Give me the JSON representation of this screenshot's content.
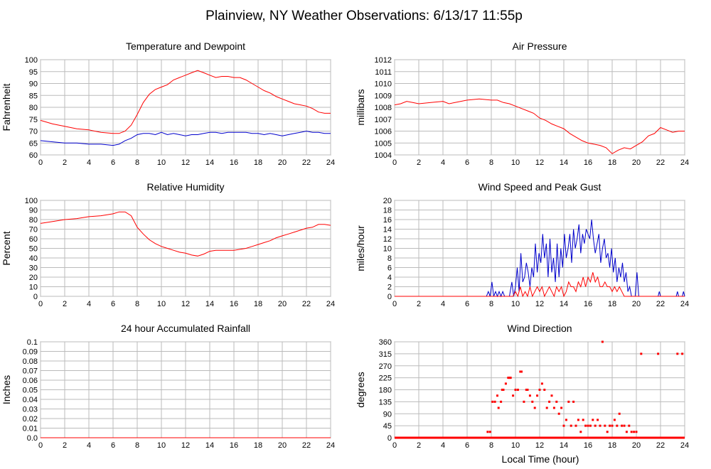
{
  "page_title": "Plainview, NY Weather Observations: 6/13/17 11:55p",
  "xlabel_common": "Local Time (hour)",
  "chart_data": [
    {
      "id": "temp",
      "type": "line",
      "title": "Temperature and Dewpoint",
      "ylabel": "Fahrenheit",
      "xlim": [
        0,
        24
      ],
      "ylim": [
        60,
        100
      ],
      "xticks": [
        0,
        2,
        4,
        6,
        8,
        10,
        12,
        14,
        16,
        18,
        20,
        22,
        24
      ],
      "yticks": [
        60,
        65,
        70,
        75,
        80,
        85,
        90,
        95,
        100
      ],
      "grid": true,
      "series": [
        {
          "color": "#ff0000",
          "x": [
            0,
            1,
            2,
            3,
            4,
            5,
            6,
            6.5,
            7,
            7.5,
            8,
            8.5,
            9,
            9.5,
            10,
            10.5,
            11,
            11.5,
            12,
            12.5,
            13,
            13.5,
            14,
            14.5,
            15,
            15.5,
            16,
            16.5,
            17,
            17.5,
            18,
            18.5,
            19,
            19.5,
            20,
            20.5,
            21,
            21.5,
            22,
            22.5,
            23,
            23.5,
            24
          ],
          "y": [
            74.5,
            73,
            72,
            71,
            70.5,
            69.5,
            69,
            69,
            70,
            72.5,
            77,
            82,
            85.5,
            87.5,
            88.5,
            89.5,
            91.5,
            92.5,
            93.5,
            94.5,
            95.5,
            94.5,
            93.5,
            92.5,
            93,
            93,
            92.5,
            92.5,
            91.5,
            90,
            88.5,
            87,
            86,
            84.5,
            83.5,
            82.5,
            81.5,
            81,
            80.5,
            79.5,
            78,
            77.5,
            77.5
          ]
        },
        {
          "color": "#0000cc",
          "x": [
            0,
            1,
            2,
            3,
            4,
            5,
            6,
            6.5,
            7,
            7.5,
            8,
            8.5,
            9,
            9.5,
            10,
            10.5,
            11,
            11.5,
            12,
            12.5,
            13,
            13.5,
            14,
            14.5,
            15,
            15.5,
            16,
            16.5,
            17,
            17.5,
            18,
            18.5,
            19,
            19.5,
            20,
            20.5,
            21,
            21.5,
            22,
            22.5,
            23,
            23.5,
            24
          ],
          "y": [
            66,
            65.5,
            65,
            65,
            64.5,
            64.5,
            64,
            64.5,
            66,
            67,
            68.5,
            69,
            69,
            68.5,
            69.5,
            68.5,
            69,
            68.5,
            68,
            68.5,
            68.5,
            69,
            69.5,
            69.5,
            69,
            69.5,
            69.5,
            69.5,
            69.5,
            69,
            69,
            68.5,
            69,
            68.5,
            68,
            68.5,
            69,
            69.5,
            70,
            69.5,
            69.5,
            69,
            69
          ]
        }
      ]
    },
    {
      "id": "pressure",
      "type": "line",
      "title": "Air Pressure",
      "ylabel": "millibars",
      "xlim": [
        0,
        24
      ],
      "ylim": [
        1004,
        1012
      ],
      "xticks": [
        0,
        2,
        4,
        6,
        8,
        10,
        12,
        14,
        16,
        18,
        20,
        22,
        24
      ],
      "yticks": [
        1004,
        1005,
        1006,
        1007,
        1008,
        1009,
        1010,
        1011,
        1012
      ],
      "grid": true,
      "series": [
        {
          "color": "#ff0000",
          "x": [
            0,
            0.5,
            1,
            1.5,
            2,
            3,
            4,
            4.5,
            5,
            6,
            7,
            8,
            8.5,
            9,
            9.5,
            10,
            10.5,
            11,
            11.5,
            12,
            12.5,
            13,
            13.5,
            14,
            14.5,
            15,
            15.5,
            16,
            16.5,
            17,
            17.5,
            18,
            18.5,
            19,
            19.5,
            20,
            20.5,
            21,
            21.5,
            22,
            22.5,
            23,
            23.5,
            24
          ],
          "y": [
            1008.2,
            1008.3,
            1008.5,
            1008.4,
            1008.3,
            1008.4,
            1008.5,
            1008.3,
            1008.4,
            1008.6,
            1008.7,
            1008.6,
            1008.6,
            1008.4,
            1008.3,
            1008.1,
            1007.9,
            1007.7,
            1007.5,
            1007.1,
            1006.9,
            1006.6,
            1006.4,
            1006.2,
            1005.8,
            1005.5,
            1005.2,
            1005.0,
            1004.9,
            1004.8,
            1004.6,
            1004.1,
            1004.4,
            1004.6,
            1004.5,
            1004.8,
            1005.1,
            1005.6,
            1005.8,
            1006.3,
            1006.1,
            1005.9,
            1006.0,
            1006.0
          ]
        }
      ]
    },
    {
      "id": "humidity",
      "type": "line",
      "title": "Relative Humidity",
      "ylabel": "Percent",
      "xlim": [
        0,
        24
      ],
      "ylim": [
        0,
        100
      ],
      "xticks": [
        0,
        2,
        4,
        6,
        8,
        10,
        12,
        14,
        16,
        18,
        20,
        22,
        24
      ],
      "yticks": [
        0,
        10,
        20,
        30,
        40,
        50,
        60,
        70,
        80,
        90,
        100
      ],
      "grid": true,
      "series": [
        {
          "color": "#ff0000",
          "x": [
            0,
            1,
            2,
            3,
            4,
            5,
            6,
            6.5,
            7,
            7.5,
            8,
            8.5,
            9,
            9.5,
            10,
            10.5,
            11,
            11.5,
            12,
            12.5,
            13,
            13.5,
            14,
            14.5,
            15,
            15.5,
            16,
            16.5,
            17,
            17.5,
            18,
            18.5,
            19,
            19.5,
            20,
            20.5,
            21,
            21.5,
            22,
            22.5,
            23,
            23.5,
            24
          ],
          "y": [
            76,
            78,
            80,
            81,
            83,
            84,
            86,
            88,
            88,
            84,
            72,
            65,
            59,
            55,
            52,
            50,
            48,
            46,
            45,
            43,
            42,
            44,
            47,
            48,
            48,
            48,
            48,
            49,
            50,
            52,
            54,
            56,
            58,
            61,
            63,
            65,
            67,
            69,
            71,
            72,
            75,
            75,
            74
          ]
        }
      ]
    },
    {
      "id": "wind",
      "type": "line",
      "title": "Wind Speed and Peak Gust",
      "ylabel": "miles/hour",
      "xlim": [
        0,
        24
      ],
      "ylim": [
        0,
        20
      ],
      "xticks": [
        0,
        2,
        4,
        6,
        8,
        10,
        12,
        14,
        16,
        18,
        20,
        22,
        24
      ],
      "yticks": [
        0,
        2,
        4,
        6,
        8,
        10,
        12,
        14,
        16,
        18,
        20
      ],
      "grid": true,
      "series": [
        {
          "color": "#0000cc",
          "x": [
            0,
            7.6,
            7.75,
            7.9,
            8.05,
            8.2,
            8.35,
            8.5,
            8.65,
            8.8,
            8.95,
            9.1,
            9.3,
            9.5,
            9.7,
            9.85,
            10.0,
            10.15,
            10.3,
            10.45,
            10.6,
            10.75,
            10.9,
            11.05,
            11.2,
            11.35,
            11.5,
            11.65,
            11.8,
            11.95,
            12.1,
            12.25,
            12.4,
            12.55,
            12.7,
            12.85,
            13.0,
            13.15,
            13.3,
            13.45,
            13.6,
            13.75,
            13.9,
            14.05,
            14.2,
            14.35,
            14.5,
            14.65,
            14.8,
            14.95,
            15.1,
            15.25,
            15.4,
            15.55,
            15.7,
            15.85,
            16.0,
            16.15,
            16.3,
            16.45,
            16.6,
            16.75,
            16.9,
            17.05,
            17.2,
            17.35,
            17.5,
            17.65,
            17.8,
            17.95,
            18.1,
            18.25,
            18.4,
            18.55,
            18.7,
            18.85,
            19.0,
            19.15,
            19.3,
            19.45,
            19.6,
            19.75,
            19.9,
            20.05,
            20.2,
            20.35,
            20.5,
            21.8,
            21.9,
            22.0,
            23.3,
            23.4,
            23.5,
            23.8,
            23.9,
            24
          ],
          "y": [
            0,
            0,
            1,
            0,
            3,
            0,
            1,
            0,
            1,
            0,
            1,
            0,
            0,
            0,
            3,
            0,
            2,
            6,
            1,
            9,
            3,
            4,
            7,
            5,
            2,
            6,
            4,
            11,
            5,
            9,
            7,
            13,
            8,
            11,
            4,
            12,
            5,
            8,
            3,
            11,
            4,
            10,
            6,
            13,
            8,
            10,
            13,
            7,
            14,
            10,
            12,
            15,
            9,
            13,
            11,
            14,
            13,
            12,
            16,
            12,
            9,
            11,
            13,
            7,
            10,
            12,
            8,
            9,
            6,
            10,
            5,
            8,
            3,
            6,
            4,
            7,
            3,
            5,
            1,
            2,
            0,
            0,
            0,
            5,
            0,
            0,
            0,
            0,
            1,
            0,
            0,
            1,
            0,
            0,
            1,
            0
          ]
        },
        {
          "color": "#ff0000",
          "x": [
            0,
            9.8,
            10.0,
            10.2,
            10.4,
            10.6,
            10.8,
            11.0,
            11.2,
            11.4,
            11.6,
            11.8,
            12.0,
            12.2,
            12.4,
            12.6,
            12.8,
            13.0,
            13.2,
            13.4,
            13.6,
            13.8,
            14.0,
            14.2,
            14.4,
            14.6,
            14.8,
            15.0,
            15.2,
            15.4,
            15.6,
            15.8,
            16.0,
            16.2,
            16.4,
            16.6,
            16.8,
            17.0,
            17.2,
            17.4,
            17.6,
            17.8,
            18.0,
            18.2,
            18.4,
            18.6,
            18.8,
            19.0,
            19.2,
            19.4,
            24
          ],
          "y": [
            0,
            0,
            1,
            0,
            2,
            0,
            1,
            0,
            2,
            0,
            1,
            2,
            1,
            2,
            0,
            1,
            2,
            1,
            0,
            2,
            1,
            2,
            0,
            1,
            3,
            2,
            2,
            1,
            3,
            2,
            4,
            2,
            4,
            3,
            5,
            3,
            4,
            2,
            2,
            3,
            2,
            2,
            1,
            2,
            1,
            2,
            1,
            0,
            0,
            0,
            0
          ]
        }
      ]
    },
    {
      "id": "rain",
      "type": "line",
      "title": "24 hour Accumulated Rainfall",
      "ylabel": "Inches",
      "xlim": [
        0,
        24
      ],
      "ylim": [
        0.0,
        0.1
      ],
      "xticks": [
        0,
        2,
        4,
        6,
        8,
        10,
        12,
        14,
        16,
        18,
        20,
        22,
        24
      ],
      "yticks": [
        "0.0",
        "0.01",
        "0.02",
        "0.03",
        "0.04",
        "0.05",
        "0.06",
        "0.07",
        "0.08",
        "0.09",
        "0.1"
      ],
      "grid": true,
      "series": [
        {
          "color": "#ff0000",
          "x": [
            0,
            24
          ],
          "y": [
            0,
            0
          ]
        }
      ]
    },
    {
      "id": "direction",
      "type": "scatter",
      "title": "Wind Direction",
      "ylabel": "degrees",
      "xlabel": "Local Time (hour)",
      "xlim": [
        0,
        24
      ],
      "ylim": [
        0,
        360
      ],
      "xticks": [
        0,
        2,
        4,
        6,
        8,
        10,
        12,
        14,
        16,
        18,
        20,
        22,
        24
      ],
      "yticks": [
        0,
        45,
        90,
        135,
        180,
        225,
        270,
        315,
        360
      ],
      "grid": true,
      "series": [
        {
          "color": "#ff0000",
          "x": [
            7.7,
            7.9,
            8.1,
            8.3,
            8.5,
            8.6,
            8.8,
            8.9,
            9.0,
            9.2,
            9.4,
            9.5,
            9.6,
            9.8,
            10.0,
            10.2,
            10.4,
            10.5,
            10.7,
            10.9,
            11.0,
            11.2,
            11.4,
            11.6,
            11.8,
            12.0,
            12.2,
            12.4,
            12.6,
            12.8,
            13.0,
            13.2,
            13.4,
            13.6,
            13.8,
            14.0,
            14.2,
            14.4,
            14.6,
            14.8,
            15.0,
            15.2,
            15.4,
            15.6,
            15.8,
            16.0,
            16.2,
            16.4,
            16.6,
            16.8,
            17.0,
            17.2,
            17.4,
            17.6,
            17.8,
            18.0,
            18.2,
            18.4,
            18.6,
            18.8,
            19.0,
            19.2,
            19.4,
            19.6,
            19.8,
            20.0,
            20.4,
            21.8,
            23.4,
            23.8
          ],
          "y": [
            22,
            22,
            135,
            135,
            158,
            112,
            135,
            180,
            180,
            203,
            225,
            225,
            225,
            158,
            180,
            180,
            248,
            248,
            135,
            180,
            180,
            158,
            135,
            112,
            158,
            180,
            203,
            180,
            112,
            135,
            158,
            112,
            135,
            90,
            112,
            45,
            67,
            135,
            45,
            135,
            45,
            67,
            22,
            67,
            45,
            45,
            45,
            67,
            45,
            67,
            45,
            360,
            45,
            22,
            45,
            45,
            67,
            45,
            90,
            45,
            45,
            22,
            45,
            22,
            22,
            22,
            315,
            315,
            315,
            315
          ]
        }
      ],
      "baseline": {
        "color": "#ff0000",
        "x": [
          0,
          24
        ],
        "y": [
          0,
          0
        ]
      }
    }
  ]
}
